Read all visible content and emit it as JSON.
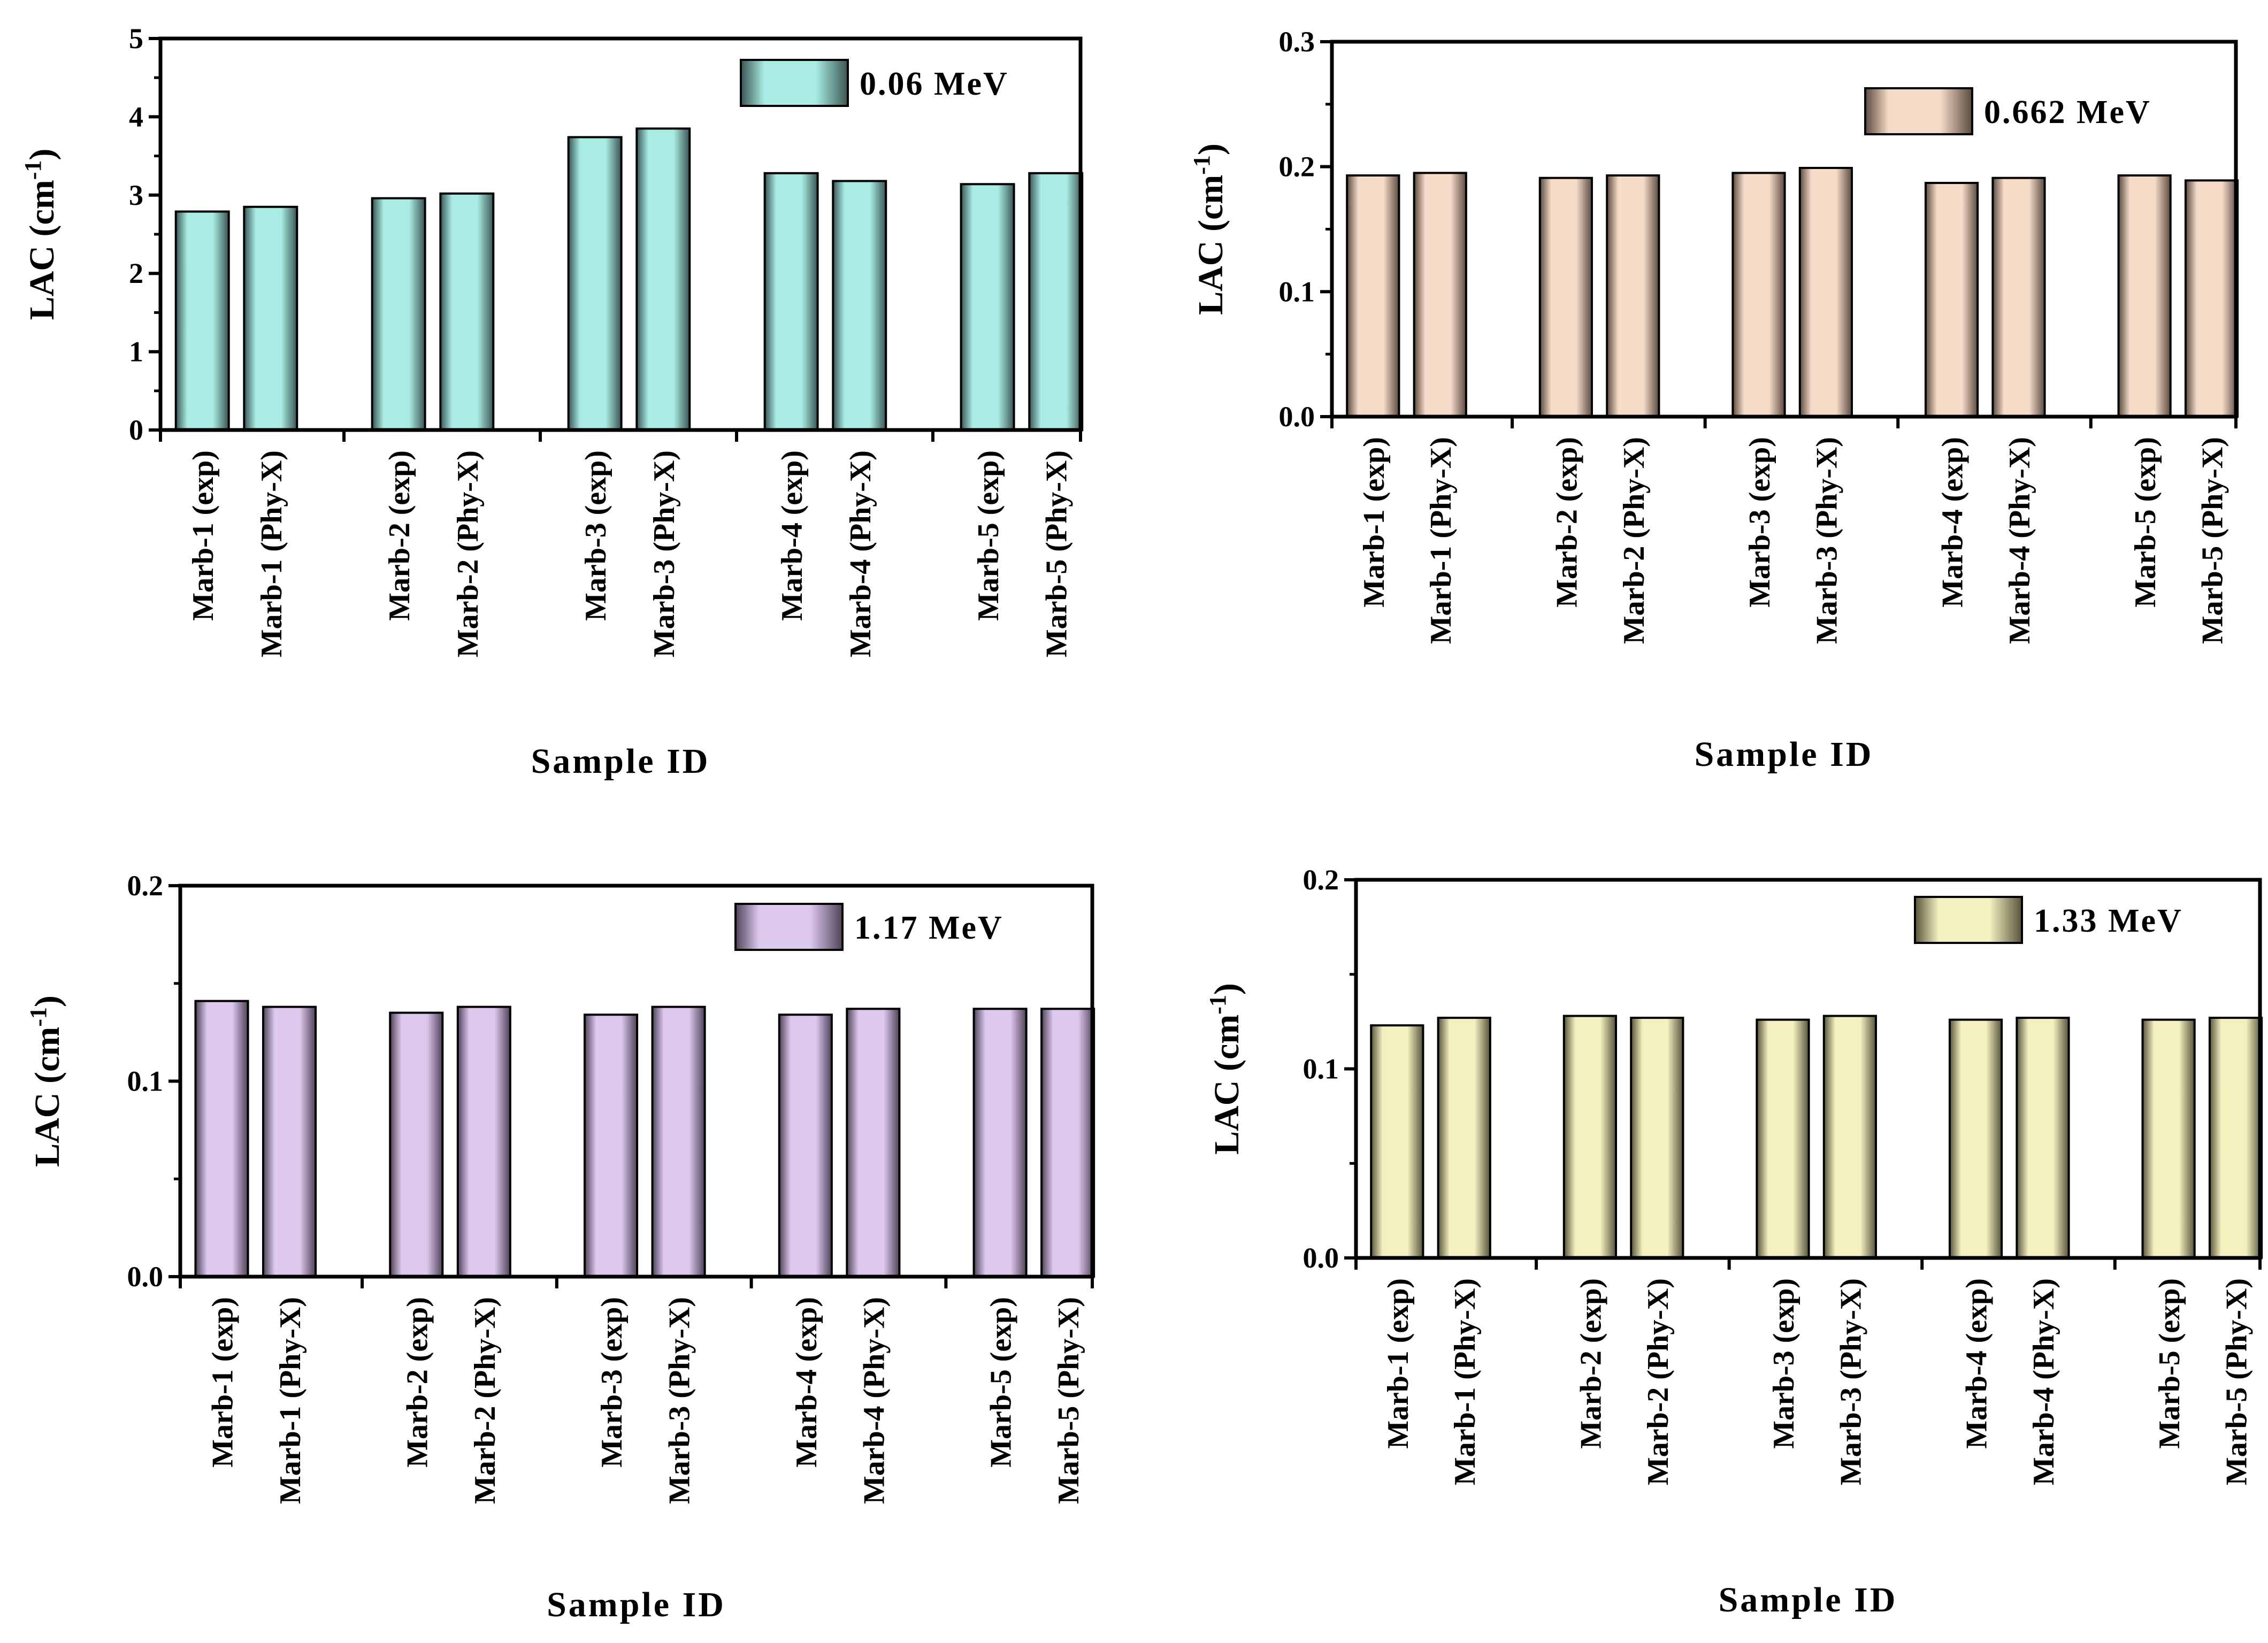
{
  "chart_data": [
    {
      "type": "bar",
      "title": "",
      "legend_label": "0.06 MeV",
      "xlabel": "Sample ID",
      "ylabel_main": "LAC (cm",
      "ylabel_sup": "-1",
      "ylabel_close": ")",
      "ylim": [
        0,
        5
      ],
      "yticks": [
        "0",
        "1",
        "2",
        "3",
        "4",
        "5"
      ],
      "ytick_values": [
        0,
        1,
        2,
        3,
        4,
        5
      ],
      "categories": [
        "Marb-1 (exp)",
        "Marb-1 (Phy-X)",
        "Marb-2 (exp)",
        "Marb-2 (Phy-X)",
        "Marb-3 (exp)",
        "Marb-3 (Phy-X)",
        "Marb-4 (exp)",
        "Marb-4 (Phy-X)",
        "Marb-5 (exp)",
        "Marb-5 (Phy-X)"
      ],
      "values": [
        2.79,
        2.85,
        2.96,
        3.02,
        3.74,
        3.85,
        3.28,
        3.18,
        3.14,
        3.28
      ],
      "bar_color": "#a8ece4",
      "bar_dark": "#3a5552",
      "legend_position": "top-right"
    },
    {
      "type": "bar",
      "title": "",
      "legend_label": "0.662 MeV",
      "xlabel": "Sample ID",
      "ylabel_main": "LAC (cm",
      "ylabel_sup": "-1",
      "ylabel_close": ")",
      "ylim": [
        0,
        0.3
      ],
      "yticks": [
        "0.0",
        "0.1",
        "0.2",
        "0.3"
      ],
      "ytick_values": [
        0,
        0.1,
        0.2,
        0.3
      ],
      "categories": [
        "Marb-1 (exp)",
        "Marb-1 (Phy-X)",
        "Marb-2 (exp)",
        "Marb-2 (Phy-X)",
        "Marb-3 (exp)",
        "Marb-3 (Phy-X)",
        "Marb-4 (exp)",
        "Marb-4 (Phy-X)",
        "Marb-5 (exp)",
        "Marb-5 (Phy-X)"
      ],
      "values": [
        0.193,
        0.195,
        0.191,
        0.193,
        0.195,
        0.199,
        0.187,
        0.191,
        0.193,
        0.189
      ],
      "bar_color": "#f6dcc8",
      "bar_dark": "#5a4a40",
      "legend_position": "top-right"
    },
    {
      "type": "bar",
      "title": "",
      "legend_label": "1.17 MeV",
      "xlabel": "Sample ID",
      "ylabel_main": "LAC (cm",
      "ylabel_sup": "-1",
      "ylabel_close": ")",
      "ylim": [
        0,
        0.2
      ],
      "yticks": [
        "0.0",
        "0.1",
        "0.2"
      ],
      "ytick_values": [
        0,
        0.1,
        0.2
      ],
      "categories": [
        "Marb-1 (exp)",
        "Marb-1 (Phy-X)",
        "Marb-2 (exp)",
        "Marb-2 (Phy-X)",
        "Marb-3 (exp)",
        "Marb-3 (Phy-X)",
        "Marb-4 (exp)",
        "Marb-4 (Phy-X)",
        "Marb-5 (exp)",
        "Marb-5 (Phy-X)"
      ],
      "values": [
        0.141,
        0.138,
        0.135,
        0.138,
        0.134,
        0.138,
        0.134,
        0.137,
        0.137,
        0.137
      ],
      "bar_color": "#ddc8ee",
      "bar_dark": "#4e4258",
      "legend_position": "top-right"
    },
    {
      "type": "bar",
      "title": "",
      "legend_label": "1.33 MeV",
      "xlabel": "Sample ID",
      "ylabel_main": "LAC (cm",
      "ylabel_sup": "-1",
      "ylabel_close": ")",
      "ylim": [
        0,
        0.2
      ],
      "yticks": [
        "0.0",
        "0.1",
        "0.2"
      ],
      "ytick_values": [
        0,
        0.1,
        0.2
      ],
      "categories": [
        "Marb-1 (exp)",
        "Marb-1 (Phy-X)",
        "Marb-2 (exp)",
        "Marb-2 (Phy-X)",
        "Marb-3 (exp)",
        "Marb-3 (Phy-X)",
        "Marb-4 (exp)",
        "Marb-4 (Phy-X)",
        "Marb-5 (exp)",
        "Marb-5 (Phy-X)"
      ],
      "values": [
        0.123,
        0.127,
        0.128,
        0.127,
        0.126,
        0.128,
        0.126,
        0.127,
        0.126,
        0.127
      ],
      "bar_color": "#f4f0c0",
      "bar_dark": "#56533a",
      "legend_position": "top-right"
    }
  ]
}
